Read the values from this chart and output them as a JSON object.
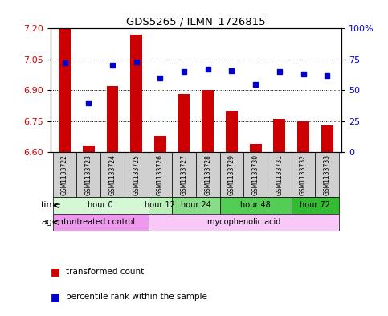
{
  "title": "GDS5265 / ILMN_1726815",
  "samples": [
    "GSM1133722",
    "GSM1133723",
    "GSM1133724",
    "GSM1133725",
    "GSM1133726",
    "GSM1133727",
    "GSM1133728",
    "GSM1133729",
    "GSM1133730",
    "GSM1133731",
    "GSM1133732",
    "GSM1133733"
  ],
  "bar_values": [
    7.2,
    6.63,
    6.92,
    7.17,
    6.68,
    6.88,
    6.9,
    6.8,
    6.64,
    6.76,
    6.75,
    6.73
  ],
  "percentile_values": [
    72,
    40,
    70,
    73,
    60,
    65,
    67,
    66,
    55,
    65,
    63,
    62
  ],
  "ylim_left": [
    6.6,
    7.2
  ],
  "yticks_left": [
    6.6,
    6.75,
    6.9,
    7.05,
    7.2
  ],
  "yticks_right": [
    0,
    25,
    50,
    75,
    100
  ],
  "bar_color": "#cc0000",
  "dot_color": "#0000cc",
  "time_groups": [
    {
      "label": "hour 0",
      "start": 0,
      "end": 3,
      "color": "#d4f7d4"
    },
    {
      "label": "hour 12",
      "start": 4,
      "end": 4,
      "color": "#b8f0b8"
    },
    {
      "label": "hour 24",
      "start": 5,
      "end": 6,
      "color": "#88dd88"
    },
    {
      "label": "hour 48",
      "start": 7,
      "end": 9,
      "color": "#55cc55"
    },
    {
      "label": "hour 72",
      "start": 10,
      "end": 11,
      "color": "#33bb33"
    }
  ],
  "agent_groups": [
    {
      "label": "untreated control",
      "start": 0,
      "end": 3,
      "color": "#ee99ee"
    },
    {
      "label": "mycophenolic acid",
      "start": 4,
      "end": 11,
      "color": "#f8c8f8"
    }
  ],
  "sample_box_color": "#d0d0d0",
  "legend_items": [
    {
      "color": "#cc0000",
      "label": "transformed count"
    },
    {
      "color": "#0000cc",
      "label": "percentile rank within the sample"
    }
  ]
}
